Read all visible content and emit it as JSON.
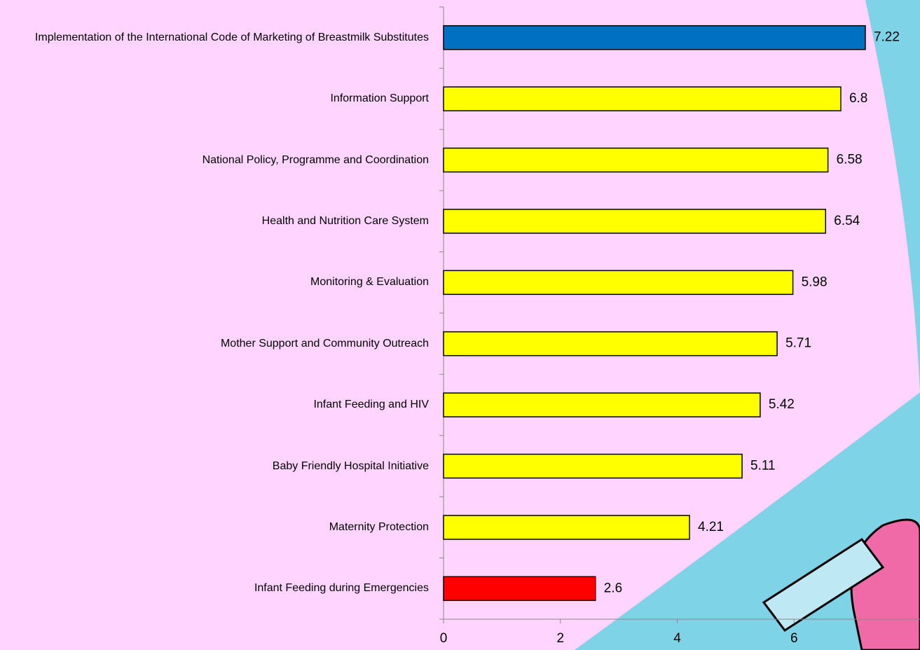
{
  "chart_data": {
    "type": "bar",
    "orientation": "horizontal",
    "categories": [
      "Implementation of the International Code of Marketing of Breastmilk Substitutes",
      "Information Support",
      "National Policy, Programme and Coordination",
      "Health and Nutrition Care System",
      "Monitoring & Evaluation",
      "Mother Support and Community Outreach",
      "Infant Feeding and HIV",
      "Baby Friendly Hospital Initiative",
      "Maternity Protection",
      "Infant Feeding during Emergencies"
    ],
    "values": [
      7.22,
      6.8,
      6.58,
      6.54,
      5.98,
      5.71,
      5.42,
      5.11,
      4.21,
      2.6
    ],
    "colors": [
      "#0070c0",
      "#ffff00",
      "#ffff00",
      "#ffff00",
      "#ffff00",
      "#ffff00",
      "#ffff00",
      "#ffff00",
      "#ffff00",
      "#ff0000"
    ],
    "xlim": [
      0,
      8
    ],
    "xticks": [
      0,
      2,
      4,
      6
    ]
  }
}
